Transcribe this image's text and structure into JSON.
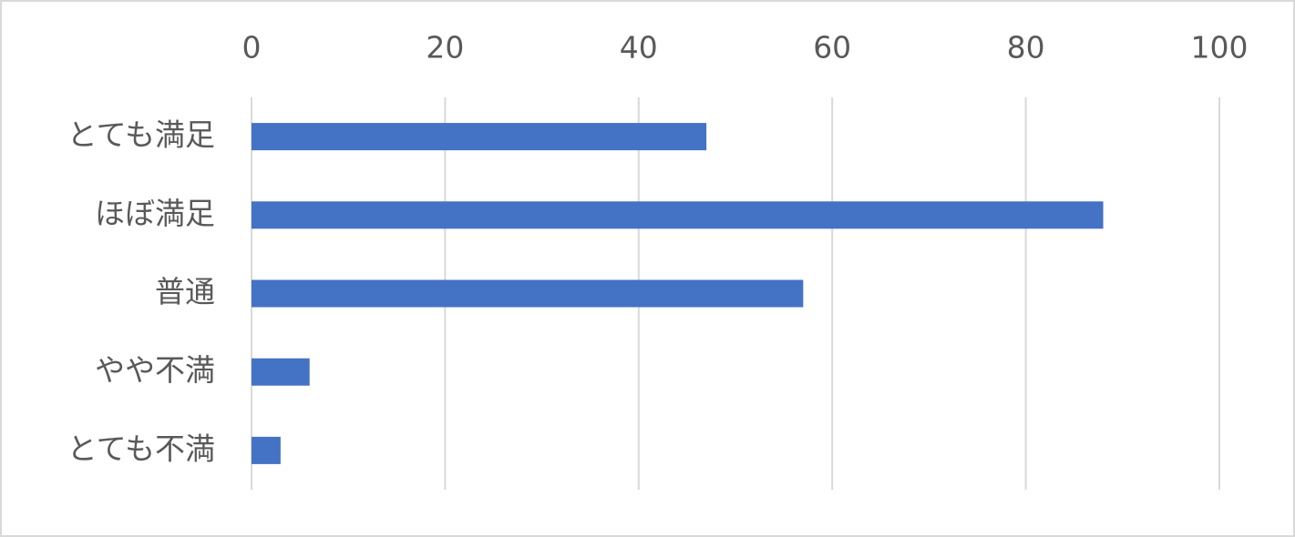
{
  "chart_data": {
    "type": "bar",
    "orientation": "horizontal",
    "categories": [
      "とても満足",
      "ほぼ満足",
      "普通",
      "やや不満",
      "とても不満"
    ],
    "values": [
      47,
      88,
      57,
      6,
      3
    ],
    "color": "#4472c4",
    "xlim": [
      0,
      100
    ],
    "xticks": [
      0,
      20,
      40,
      60,
      80,
      100
    ],
    "grid": true
  }
}
